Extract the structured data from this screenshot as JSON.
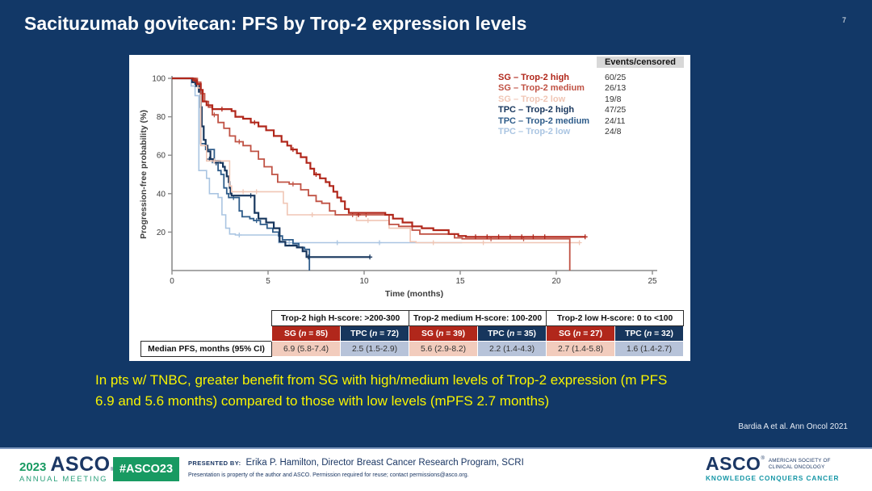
{
  "slide": {
    "title": "Sacituzumab govitecan: PFS by Trop-2 expression levels",
    "page_number": "7",
    "highlight_line1": "In pts w/ TNBC, greater benefit from SG with high/medium levels of Trop-2 expression (m PFS",
    "highlight_line2": "6.9 and 5.6 months) compared to those with low levels (mPFS 2.7 months)",
    "citation": "Bardia A et al. Ann Oncol 2021"
  },
  "colors": {
    "slide_bg": "#123867",
    "title_text": "#ffffff",
    "highlight_text": "#f8f400",
    "table_red": "#b1271b",
    "table_navy": "#17365d",
    "cell_pink": "#f2ccbd",
    "cell_blue": "#b7c3d9",
    "footer_green": "#189a62",
    "footer_navy": "#1b3764",
    "footer_teal": "#1596a6"
  },
  "chart_data": {
    "type": "line",
    "subtype": "kaplan-meier-step",
    "xlabel": "Time (months)",
    "ylabel": "Progression-free probability (%)",
    "xlim": [
      0,
      25
    ],
    "ylim": [
      0,
      100
    ],
    "xticks": [
      0,
      5,
      10,
      15,
      20,
      25
    ],
    "yticks": [
      20,
      40,
      60,
      80,
      100
    ],
    "grid": "off",
    "legend_position": "top-right",
    "legend_header": "Events/censored",
    "series": [
      {
        "name": "SG – Trop-2 high",
        "events_censored": "60/25",
        "median_pfs": "6.9 (5.8-7.4)",
        "color": "#b1271b",
        "width": 2.2,
        "steps": [
          [
            0,
            100
          ],
          [
            1.1,
            99
          ],
          [
            1.3,
            97
          ],
          [
            1.5,
            94
          ],
          [
            1.6,
            88
          ],
          [
            1.8,
            86
          ],
          [
            2.1,
            84
          ],
          [
            3.1,
            83
          ],
          [
            3.3,
            80
          ],
          [
            3.7,
            79
          ],
          [
            4.1,
            77
          ],
          [
            4.5,
            75
          ],
          [
            4.9,
            73
          ],
          [
            5.3,
            70
          ],
          [
            5.7,
            67
          ],
          [
            6.0,
            65
          ],
          [
            6.2,
            63
          ],
          [
            6.5,
            61
          ],
          [
            6.7,
            59
          ],
          [
            7.0,
            56
          ],
          [
            7.2,
            53
          ],
          [
            7.4,
            50
          ],
          [
            7.7,
            48
          ],
          [
            8.0,
            46
          ],
          [
            8.2,
            44
          ],
          [
            8.4,
            41
          ],
          [
            8.6,
            38
          ],
          [
            8.8,
            36
          ],
          [
            9.0,
            32
          ],
          [
            9.2,
            30
          ],
          [
            11.1,
            29
          ],
          [
            11.5,
            27
          ],
          [
            12.0,
            25
          ],
          [
            12.5,
            23
          ],
          [
            13.0,
            22
          ],
          [
            13.6,
            21
          ],
          [
            14.4,
            19
          ],
          [
            14.9,
            18
          ],
          [
            15.3,
            17.5
          ],
          [
            21.5,
            17.5
          ]
        ],
        "censors": [
          [
            1.2,
            99
          ],
          [
            2.6,
            84
          ],
          [
            4.3,
            77
          ],
          [
            6.3,
            63
          ],
          [
            7.5,
            50
          ],
          [
            9.7,
            29
          ],
          [
            15.8,
            17.5
          ],
          [
            16.4,
            17.5
          ],
          [
            17.0,
            17.5
          ],
          [
            17.6,
            17.5
          ],
          [
            18.2,
            17.5
          ],
          [
            18.8,
            17.5
          ],
          [
            19.4,
            17.5
          ],
          [
            21.5,
            17.5
          ]
        ]
      },
      {
        "name": "SG – Trop-2 medium",
        "events_censored": "26/13",
        "median_pfs": "5.6 (2.9-8.2)",
        "color": "#c05244",
        "width": 1.8,
        "steps": [
          [
            0,
            100
          ],
          [
            1.3,
            98
          ],
          [
            1.5,
            92
          ],
          [
            1.7,
            88
          ],
          [
            1.9,
            85
          ],
          [
            2.1,
            81
          ],
          [
            2.4,
            77
          ],
          [
            2.7,
            74
          ],
          [
            3.0,
            70
          ],
          [
            3.3,
            67
          ],
          [
            3.7,
            65
          ],
          [
            4.1,
            62
          ],
          [
            4.5,
            58
          ],
          [
            4.8,
            54
          ],
          [
            5.2,
            50
          ],
          [
            5.5,
            46
          ],
          [
            6.1,
            45
          ],
          [
            6.7,
            42
          ],
          [
            7.1,
            39
          ],
          [
            7.5,
            36
          ],
          [
            7.8,
            35
          ],
          [
            8.2,
            31
          ],
          [
            8.5,
            29
          ],
          [
            11.1,
            29
          ],
          [
            11.3,
            24
          ],
          [
            11.8,
            23
          ],
          [
            12.5,
            21
          ],
          [
            12.9,
            19
          ],
          [
            14.7,
            17
          ],
          [
            15.1,
            16.5
          ],
          [
            20.7,
            16.5
          ],
          [
            20.7,
            0
          ]
        ],
        "censors": [
          [
            2.2,
            81
          ],
          [
            3.5,
            67
          ],
          [
            6.3,
            45
          ],
          [
            9.4,
            29
          ],
          [
            10.1,
            29
          ],
          [
            16.6,
            16.5
          ],
          [
            18.3,
            16.5
          ]
        ]
      },
      {
        "name": "SG – Trop-2 low",
        "events_censored": "19/8",
        "median_pfs": "2.7 (1.4-5.8)",
        "color": "#f0c6b5",
        "width": 1.6,
        "steps": [
          [
            0,
            100
          ],
          [
            1.35,
            95
          ],
          [
            1.5,
            65
          ],
          [
            1.8,
            57
          ],
          [
            2.95,
            57
          ],
          [
            3.0,
            44
          ],
          [
            3.1,
            41
          ],
          [
            5.6,
            41
          ],
          [
            5.8,
            35
          ],
          [
            6.0,
            29
          ],
          [
            9.4,
            29
          ],
          [
            9.6,
            26
          ],
          [
            11.1,
            26
          ],
          [
            11.3,
            22
          ],
          [
            12.4,
            15
          ],
          [
            12.7,
            14.5
          ],
          [
            21.2,
            14.5
          ]
        ],
        "censors": [
          [
            2.2,
            57
          ],
          [
            3.7,
            41
          ],
          [
            4.4,
            41
          ],
          [
            7.3,
            29
          ],
          [
            10.2,
            26
          ],
          [
            13.6,
            14.5
          ],
          [
            16.2,
            14.5
          ],
          [
            21.2,
            14.5
          ]
        ]
      },
      {
        "name": "TPC – Trop-2 high",
        "events_censored": "47/25",
        "median_pfs": "2.5 (1.5-2.9)",
        "color": "#17365d",
        "width": 2.2,
        "steps": [
          [
            0,
            100
          ],
          [
            1.05,
            98
          ],
          [
            1.25,
            96
          ],
          [
            1.4,
            93
          ],
          [
            1.5,
            85
          ],
          [
            1.55,
            75
          ],
          [
            1.65,
            68
          ],
          [
            1.75,
            65
          ],
          [
            1.85,
            62
          ],
          [
            2.0,
            58
          ],
          [
            2.15,
            57
          ],
          [
            2.5,
            56
          ],
          [
            2.65,
            54
          ],
          [
            2.75,
            52
          ],
          [
            2.85,
            49
          ],
          [
            2.95,
            46
          ],
          [
            3.0,
            43
          ],
          [
            3.05,
            40
          ],
          [
            3.1,
            39
          ],
          [
            4.2,
            39
          ],
          [
            4.3,
            30
          ],
          [
            4.5,
            27
          ],
          [
            4.9,
            25
          ],
          [
            5.3,
            22
          ],
          [
            5.6,
            15
          ],
          [
            5.9,
            13
          ],
          [
            6.5,
            12
          ],
          [
            6.8,
            10
          ],
          [
            7.0,
            7
          ],
          [
            10.3,
            7
          ]
        ],
        "censors": [
          [
            1.95,
            58
          ],
          [
            2.3,
            56
          ],
          [
            4.1,
            39
          ],
          [
            7.1,
            7
          ],
          [
            10.3,
            7
          ]
        ]
      },
      {
        "name": "TPC – Trop-2 medium",
        "events_censored": "24/11",
        "median_pfs": "2.2 (1.4-4.3)",
        "color": "#2e5c8a",
        "width": 1.8,
        "steps": [
          [
            0,
            100
          ],
          [
            1.2,
            97
          ],
          [
            1.4,
            94
          ],
          [
            1.5,
            66
          ],
          [
            1.75,
            63
          ],
          [
            2.2,
            57
          ],
          [
            2.4,
            52
          ],
          [
            2.55,
            50
          ],
          [
            2.7,
            43
          ],
          [
            2.85,
            40
          ],
          [
            2.95,
            38
          ],
          [
            3.35,
            38
          ],
          [
            3.5,
            31
          ],
          [
            3.65,
            28
          ],
          [
            4.05,
            27
          ],
          [
            4.25,
            26
          ],
          [
            4.6,
            24
          ],
          [
            4.95,
            22
          ],
          [
            5.25,
            20
          ],
          [
            5.55,
            18
          ],
          [
            5.75,
            16
          ],
          [
            6.3,
            14
          ],
          [
            6.6,
            12
          ],
          [
            6.9,
            11
          ],
          [
            7.15,
            11
          ],
          [
            7.15,
            0
          ]
        ],
        "censors": [
          [
            2.1,
            57
          ],
          [
            3.2,
            38
          ],
          [
            4.4,
            26
          ]
        ]
      },
      {
        "name": "TPC – Trop-2 low",
        "events_censored": "24/8",
        "median_pfs": "1.6 (1.4-2.7)",
        "color": "#aac5e2",
        "width": 1.6,
        "steps": [
          [
            0,
            100
          ],
          [
            1.0,
            96
          ],
          [
            1.2,
            91
          ],
          [
            1.4,
            52
          ],
          [
            1.8,
            48
          ],
          [
            1.95,
            40
          ],
          [
            2.4,
            38
          ],
          [
            2.6,
            29
          ],
          [
            2.8,
            22
          ],
          [
            3.0,
            19
          ],
          [
            3.3,
            18.5
          ],
          [
            5.45,
            18.5
          ],
          [
            5.55,
            14.5
          ],
          [
            15.1,
            14.5
          ]
        ],
        "censors": [
          [
            3.5,
            18.5
          ],
          [
            6.1,
            14.5
          ],
          [
            8.6,
            14.5
          ],
          [
            10.8,
            14.5
          ]
        ]
      }
    ]
  },
  "table": {
    "groups": [
      "Trop-2 high H-score: >200-300",
      "Trop-2 medium H-score: 100-200",
      "Trop-2 low H-score: 0 to <100"
    ],
    "arms": [
      {
        "pre": "SG (",
        "n": "n",
        "post": " = 85)"
      },
      {
        "pre": "TPC (",
        "n": "n",
        "post": " = 72)"
      },
      {
        "pre": "SG (",
        "n": "n",
        "post": " = 39)"
      },
      {
        "pre": "TPC (",
        "n": "n",
        "post": " = 35)"
      },
      {
        "pre": "SG (",
        "n": "n",
        "post": " = 27)"
      },
      {
        "pre": "TPC (",
        "n": "n",
        "post": " = 32)"
      }
    ],
    "row_label": "Median PFS, months (95% CI)",
    "values": [
      "6.9 (5.8-7.4)",
      "2.5 (1.5-2.9)",
      "5.6 (2.9-8.2)",
      "2.2 (1.4-4.3)",
      "2.7 (1.4-5.8)",
      "1.6 (1.4-2.7)"
    ]
  },
  "footer": {
    "meeting_year": "2023",
    "meeting_name": "ASCO",
    "reg_mark": "®",
    "meeting_sub": "ANNUAL MEETING",
    "hashtag": "#ASCO23",
    "presented_by_label": "PRESENTED BY:",
    "presenter": "Erika P. Hamilton,  Director Breast Cancer Research Program, SCRI",
    "disclaimer": "Presentation is property of the author and ASCO. Permission required for reuse; contact permissions@asco.org.",
    "asco_name": "ASCO",
    "society_line1": "AMERICAN SOCIETY OF",
    "society_line2": "CLINICAL ONCOLOGY",
    "tagline": "KNOWLEDGE CONQUERS CANCER"
  }
}
